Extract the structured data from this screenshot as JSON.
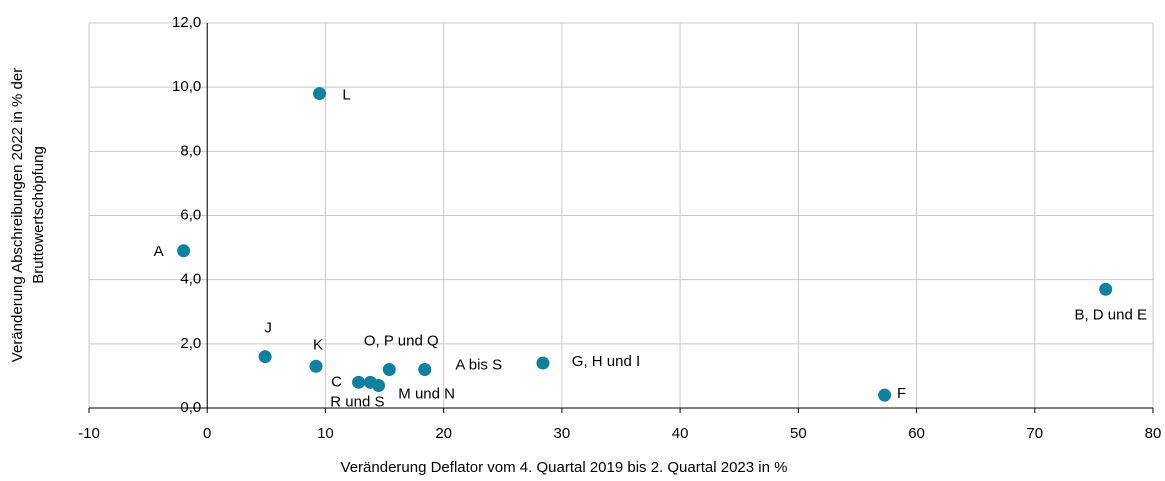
{
  "chart_data": {
    "type": "scatter",
    "x_label": "Veränderung Deflator vom 4. Quartal 2019 bis 2. Quartal 2023 in %",
    "y_label": [
      "Veränderung Abschreibungen 2022 in % der",
      "Bruttowertschöpfung"
    ],
    "labels": [
      "A",
      "L",
      "J",
      "K",
      "C",
      "R und S",
      "M und N",
      "O, P und Q",
      "A bis S",
      "G, H und I",
      "F",
      "B, D und E"
    ],
    "x": [
      -2.0,
      9.5,
      4.9,
      9.2,
      12.8,
      13.8,
      14.5,
      15.4,
      18.4,
      28.4,
      57.3,
      76.0
    ],
    "values": [
      4.9,
      9.8,
      1.6,
      1.3,
      0.8,
      0.8,
      0.7,
      1.2,
      1.2,
      1.4,
      0.4,
      3.7
    ],
    "color": "#10809f",
    "xlim": [
      -10,
      80
    ],
    "xticks": [
      -10,
      0,
      10,
      20,
      30,
      40,
      50,
      60,
      70,
      80
    ],
    "ylim": [
      0,
      12
    ],
    "yticks": [
      {
        "value": 0,
        "label": "0,0"
      },
      {
        "value": 2,
        "label": "2,0"
      },
      {
        "value": 4,
        "label": "4,0"
      },
      {
        "value": 6,
        "label": "6,0"
      },
      {
        "value": 8,
        "label": "8,0"
      },
      {
        "value": 10,
        "label": "10,0"
      },
      {
        "value": 12,
        "label": "12,0"
      }
    ],
    "grid": true
  }
}
